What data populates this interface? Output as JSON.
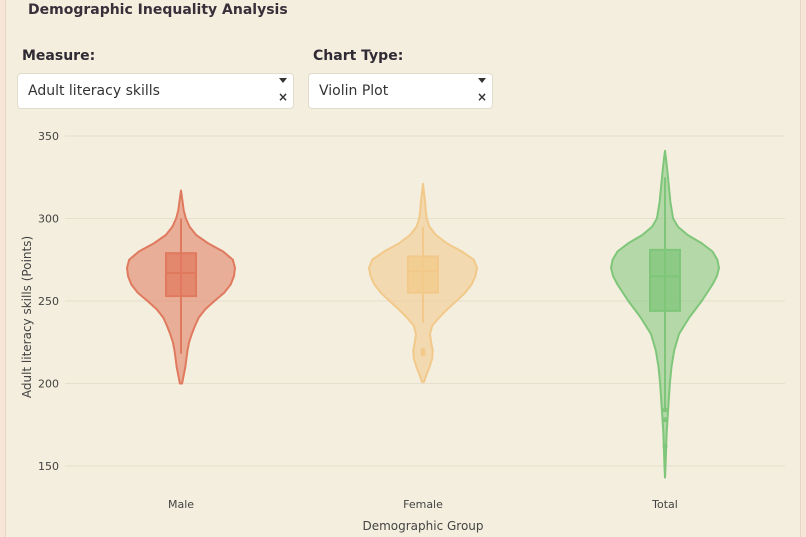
{
  "header": {
    "title": "Demographic Inequality Analysis"
  },
  "controls": {
    "measure": {
      "label": "Measure:",
      "value": "Adult literacy skills",
      "clear": "×"
    },
    "chart_type": {
      "label": "Chart Type:",
      "value": "Violin Plot",
      "clear": "×"
    }
  },
  "chart_data": {
    "type": "violin",
    "title": "",
    "xlabel": "Demographic Group",
    "ylabel": "Adult literacy skills (Points)",
    "ylim": [
      140,
      355
    ],
    "yticks": [
      150,
      200,
      250,
      300,
      350
    ],
    "categories": [
      "Male",
      "Female",
      "Total"
    ],
    "grid": true,
    "legend": "none",
    "series": [
      {
        "category": "Male",
        "color": "#e07a5f",
        "min": 200,
        "max": 317,
        "q1": 253,
        "median": 267,
        "q3": 279,
        "whisker_low": 218,
        "whisker_high": 300,
        "density": [
          [
            200,
            0.02
          ],
          [
            205,
            0.05
          ],
          [
            210,
            0.08
          ],
          [
            215,
            0.1
          ],
          [
            220,
            0.12
          ],
          [
            225,
            0.15
          ],
          [
            230,
            0.2
          ],
          [
            235,
            0.26
          ],
          [
            240,
            0.33
          ],
          [
            245,
            0.45
          ],
          [
            250,
            0.62
          ],
          [
            255,
            0.8
          ],
          [
            260,
            0.92
          ],
          [
            265,
            0.98
          ],
          [
            270,
            1.0
          ],
          [
            275,
            0.96
          ],
          [
            280,
            0.78
          ],
          [
            285,
            0.5
          ],
          [
            290,
            0.28
          ],
          [
            295,
            0.16
          ],
          [
            300,
            0.09
          ],
          [
            305,
            0.05
          ],
          [
            310,
            0.03
          ],
          [
            317,
            0.0
          ]
        ],
        "outliers": []
      },
      {
        "category": "Female",
        "color": "#f2c98a",
        "min": 201,
        "max": 321,
        "q1": 255,
        "median": 268,
        "q3": 277,
        "whisker_low": 237,
        "whisker_high": 295,
        "density": [
          [
            201,
            0.02
          ],
          [
            205,
            0.06
          ],
          [
            210,
            0.12
          ],
          [
            215,
            0.17
          ],
          [
            220,
            0.18
          ],
          [
            225,
            0.15
          ],
          [
            230,
            0.13
          ],
          [
            235,
            0.17
          ],
          [
            240,
            0.3
          ],
          [
            245,
            0.45
          ],
          [
            250,
            0.62
          ],
          [
            255,
            0.78
          ],
          [
            260,
            0.9
          ],
          [
            265,
            0.97
          ],
          [
            270,
            1.0
          ],
          [
            275,
            0.94
          ],
          [
            280,
            0.72
          ],
          [
            285,
            0.44
          ],
          [
            290,
            0.24
          ],
          [
            295,
            0.12
          ],
          [
            300,
            0.07
          ],
          [
            305,
            0.05
          ],
          [
            310,
            0.04
          ],
          [
            315,
            0.02
          ],
          [
            321,
            0.0
          ]
        ],
        "outliers": [
          218,
          220
        ]
      },
      {
        "category": "Total",
        "color": "#7fc67a",
        "min": 143,
        "max": 341,
        "q1": 244,
        "median": 265,
        "q3": 281,
        "whisker_low": 185,
        "whisker_high": 325,
        "density": [
          [
            143,
            0.0
          ],
          [
            150,
            0.01
          ],
          [
            160,
            0.02
          ],
          [
            170,
            0.03
          ],
          [
            180,
            0.05
          ],
          [
            190,
            0.07
          ],
          [
            200,
            0.09
          ],
          [
            210,
            0.12
          ],
          [
            220,
            0.17
          ],
          [
            230,
            0.26
          ],
          [
            240,
            0.45
          ],
          [
            250,
            0.68
          ],
          [
            260,
            0.88
          ],
          [
            265,
            0.96
          ],
          [
            270,
            1.0
          ],
          [
            275,
            0.97
          ],
          [
            280,
            0.88
          ],
          [
            285,
            0.68
          ],
          [
            290,
            0.42
          ],
          [
            295,
            0.24
          ],
          [
            300,
            0.15
          ],
          [
            310,
            0.1
          ],
          [
            320,
            0.07
          ],
          [
            330,
            0.04
          ],
          [
            336,
            0.02
          ],
          [
            341,
            0.0
          ]
        ],
        "outliers": [
          184,
          178,
          162
        ]
      }
    ]
  }
}
